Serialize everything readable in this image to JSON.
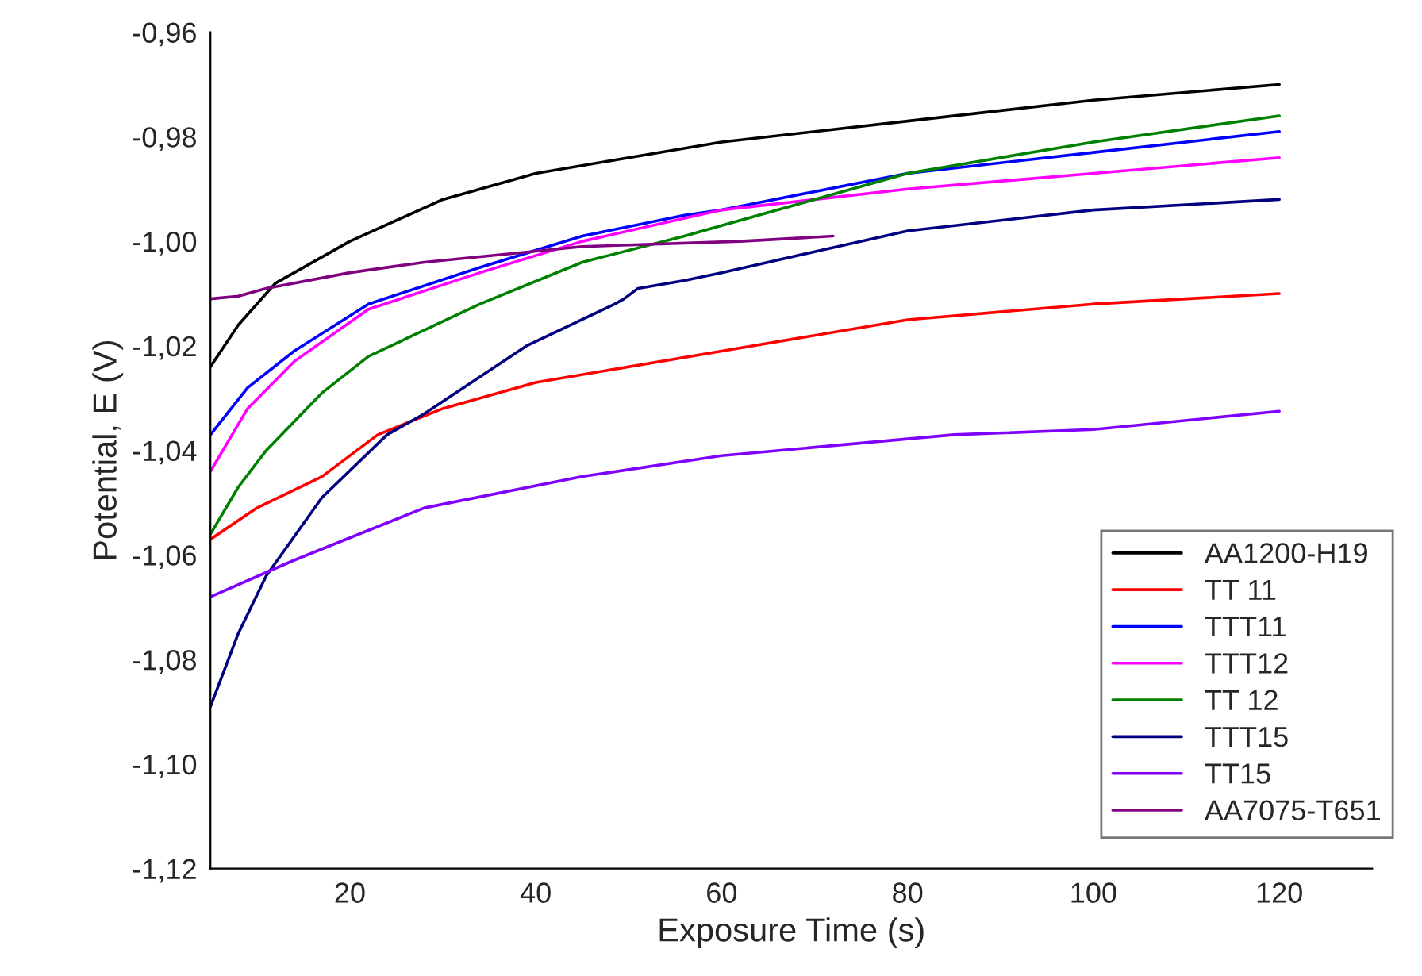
{
  "chart_data": {
    "type": "line",
    "xlabel": "Exposure Time (s)",
    "ylabel": "Potential, E (V)",
    "xlim": [
      5,
      130
    ],
    "xticks": [
      20,
      40,
      60,
      80,
      100,
      120
    ],
    "ylim": [
      -1.12,
      -0.96
    ],
    "yticks": [
      {
        "value": -1.12,
        "label": "-1,12"
      },
      {
        "value": -1.1,
        "label": "-1,10"
      },
      {
        "value": -1.08,
        "label": "-1,08"
      },
      {
        "value": -1.06,
        "label": "-1,06"
      },
      {
        "value": -1.04,
        "label": "-1,04"
      },
      {
        "value": -1.02,
        "label": "-1,02"
      },
      {
        "value": -1.0,
        "label": "-1,00"
      },
      {
        "value": -0.98,
        "label": "-0,98"
      },
      {
        "value": -0.96,
        "label": "-0,96"
      }
    ],
    "grid": false,
    "legend": "bottom right",
    "marker": "none",
    "line_style": "solid",
    "series": [
      {
        "name": "AA1200-H19",
        "color": "#000000",
        "x": [
          5,
          8,
          12,
          20,
          30,
          40,
          50,
          60,
          80,
          100,
          120
        ],
        "values": [
          -1.024,
          -1.016,
          -1.008,
          -1.0,
          -0.992,
          -0.987,
          -0.984,
          -0.981,
          -0.977,
          -0.973,
          -0.97
        ]
      },
      {
        "name": "TT 11",
        "color": "#ff0000",
        "x": [
          5,
          10,
          17,
          23,
          30,
          40,
          60,
          80,
          100,
          120
        ],
        "values": [
          -1.057,
          -1.051,
          -1.045,
          -1.037,
          -1.032,
          -1.027,
          -1.021,
          -1.015,
          -1.012,
          -1.01
        ]
      },
      {
        "name": "TTT11",
        "color": "#0000ff",
        "x": [
          5,
          9,
          14,
          22,
          34,
          45,
          56,
          60,
          80,
          100,
          120
        ],
        "values": [
          -1.037,
          -1.028,
          -1.021,
          -1.012,
          -1.005,
          -0.999,
          -0.995,
          -0.994,
          -0.987,
          -0.983,
          -0.979
        ]
      },
      {
        "name": "TTT12",
        "color": "#ff00ff",
        "x": [
          5,
          9,
          14,
          22,
          34,
          45,
          60,
          80,
          100,
          120
        ],
        "values": [
          -1.044,
          -1.032,
          -1.023,
          -1.013,
          -1.006,
          -1.0,
          -0.994,
          -0.99,
          -0.987,
          -0.984
        ]
      },
      {
        "name": "TT 12",
        "color": "#008000",
        "x": [
          5,
          8,
          11,
          17,
          22,
          34,
          45,
          56,
          60,
          80,
          100,
          120
        ],
        "values": [
          -1.056,
          -1.047,
          -1.04,
          -1.029,
          -1.022,
          -1.012,
          -1.004,
          -0.999,
          -0.997,
          -0.987,
          -0.981,
          -0.976
        ]
      },
      {
        "name": "TTT15",
        "color": "#000080",
        "x": [
          5,
          8,
          11,
          17,
          24,
          28,
          39,
          48.5,
          49.5,
          51,
          56,
          60,
          70,
          80,
          100,
          120
        ],
        "values": [
          -1.089,
          -1.075,
          -1.064,
          -1.049,
          -1.037,
          -1.033,
          -1.02,
          -1.012,
          -1.011,
          -1.009,
          -1.0075,
          -1.006,
          -1.002,
          -0.998,
          -0.994,
          -0.992
        ]
      },
      {
        "name": "TT15",
        "color": "#8000ff",
        "x": [
          5,
          14,
          28,
          45,
          60,
          85,
          100,
          120
        ],
        "values": [
          -1.068,
          -1.061,
          -1.051,
          -1.045,
          -1.041,
          -1.037,
          -1.036,
          -1.0325
        ]
      },
      {
        "name": "AA7075-T651",
        "color": "#800080",
        "x": [
          5,
          8,
          11,
          20,
          28,
          45,
          62,
          72
        ],
        "values": [
          -1.011,
          -1.0105,
          -1.009,
          -1.006,
          -1.004,
          -1.001,
          -1.0,
          -0.999
        ]
      }
    ]
  }
}
